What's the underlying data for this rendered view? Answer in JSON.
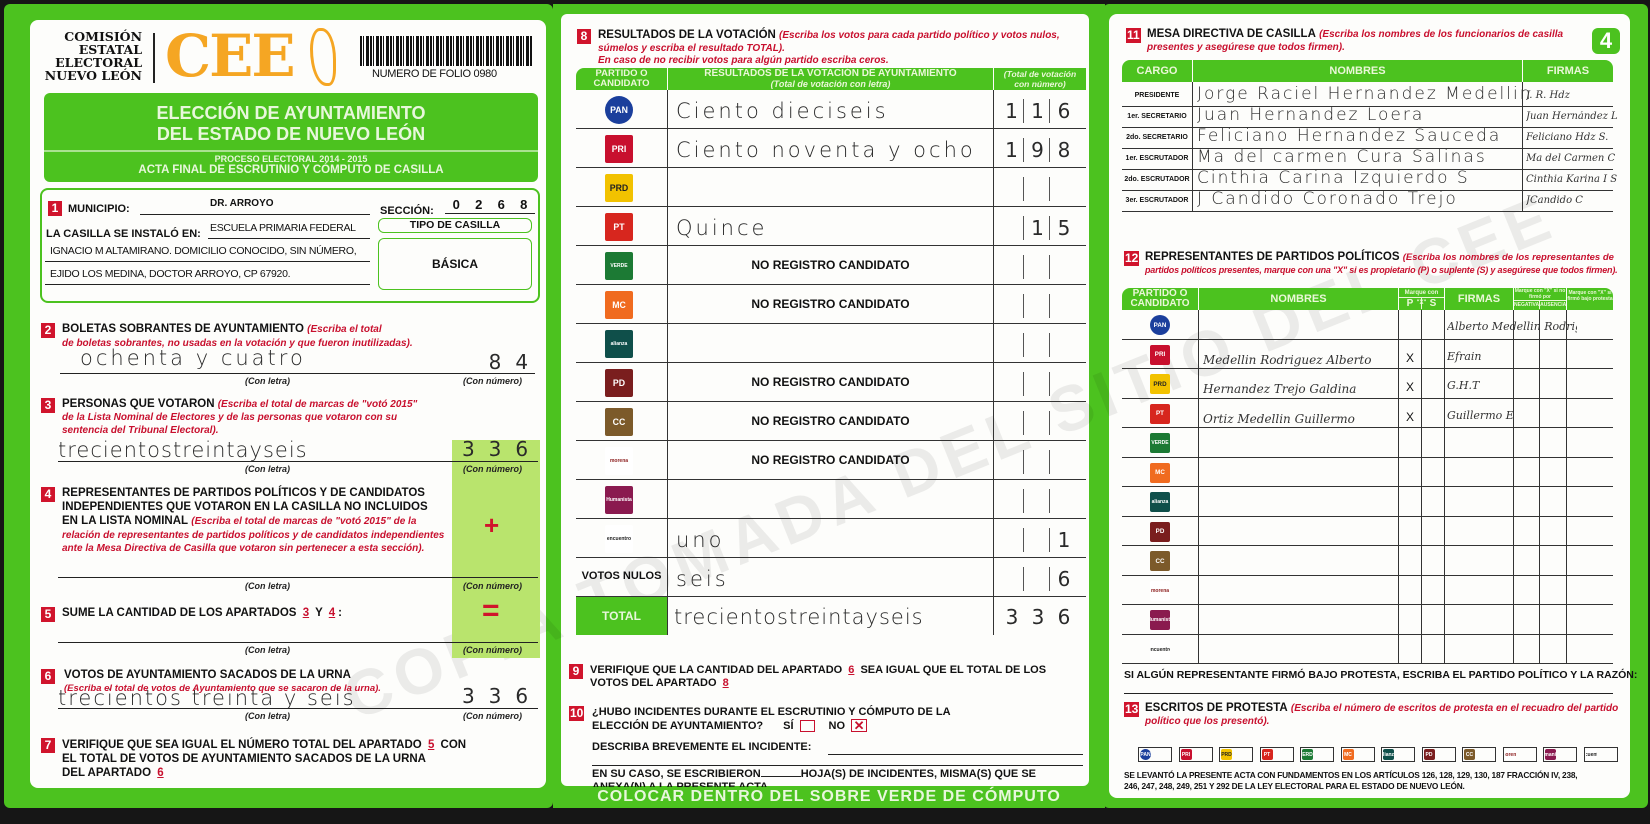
{
  "header": {
    "org_lines": [
      "COMISIÓN",
      "ESTATAL",
      "ELECTORAL",
      "NUEVO LEÓN"
    ],
    "logo_text": "CEE",
    "folio": "NUMERO DE FOLIO 0980",
    "title_line1": "ELECCIÓN DE AYUNTAMIENTO",
    "title_line2": "DEL ESTADO DE NUEVO LEÓN",
    "proceso": "PROCESO ELECTORAL 2014 - 2015",
    "acta": "ACTA FINAL DE ESCRUTINIO Y CÓMPUTO DE CASILLA",
    "page_number": "4",
    "brand_green": "#4cc21f",
    "logo_orange": "#f5a623"
  },
  "watermark": "COPIA TOMADA DEL SITIO DEL CEE",
  "s1": {
    "num": "1",
    "municipio_label": "MUNICIPIO:",
    "municipio": "DR. ARROYO",
    "seccion_label": "SECCIÓN:",
    "seccion": [
      "0",
      "2",
      "6",
      "8"
    ],
    "instalo_label": "LA CASILLA SE INSTALÓ EN:",
    "address": [
      "ESCUELA PRIMARIA FEDERAL",
      "IGNACIO M ALTAMIRANO. DOMICILIO CONOCIDO, SIN NÚMERO,",
      "EJIDO LOS MEDINA, DOCTOR ARROYO, CP 67920."
    ],
    "tipo_label": "TIPO DE CASILLA",
    "tipo": "BÁSICA"
  },
  "labels": {
    "con_letra": "(Con letra)",
    "con_numero": "(Con número)",
    "plus": "+",
    "equals": "="
  },
  "s2": {
    "num": "2",
    "title": "BOLETAS SOBRANTES DE AYUNTAMIENTO",
    "note1": "(Escriba el total",
    "note2": "de boletas sobrantes, no usadas en la votación y que fueron inutilizadas).",
    "letra": "ochenta y cuatro",
    "numero": [
      "",
      "8",
      "4"
    ]
  },
  "s3": {
    "num": "3",
    "title": "PERSONAS QUE VOTARON",
    "note1": "(Escriba el total de marcas de \"votó 2015\"",
    "note2": "de la Lista Nominal de Electores y de las personas que votaron con su",
    "note3": "sentencia del Tribunal Electoral).",
    "letra": "trecientostreintayseis",
    "numero": [
      "3",
      "3",
      "6"
    ]
  },
  "s4": {
    "num": "4",
    "line1": "REPRESENTANTES DE PARTIDOS POLÍTICOS Y DE CANDIDATOS",
    "line2": "INDEPENDIENTES QUE VOTARON EN LA CASILLA NO INCLUIDOS",
    "line3": "EN LA LISTA NOMINAL",
    "note1": "(Escriba el total de marcas de \"votó 2015\" de la",
    "note2": "relación de representantes de partidos políticos y de candidatos independientes",
    "note3": "ante la Mesa Directiva de Casilla que votaron sin pertenecer a esta sección)."
  },
  "s5": {
    "num": "5",
    "text": "SUME LA CANTIDAD DE LOS APARTADOS",
    "ref_a": "3",
    "conj": "Y",
    "ref_b": "4",
    "colon": ":"
  },
  "s6": {
    "num": "6",
    "title": "VOTOS DE AYUNTAMIENTO SACADOS DE LA URNA",
    "note": "(Escriba el total de votos de Ayuntamiento que se sacaron de la urna).",
    "letra": "trecientos treinta y seis",
    "numero": [
      "3",
      "3",
      "6"
    ]
  },
  "s7": {
    "num": "7",
    "line1": "VERIFIQUE QUE SEA IGUAL EL NÚMERO TOTAL DEL APARTADO",
    "ref_a": "5",
    "con": "CON",
    "line2": "EL TOTAL DE VOTOS DE AYUNTAMIENTO SACADOS DE LA URNA",
    "line3": "DEL APARTADO",
    "ref_b": "6"
  },
  "s8": {
    "num": "8",
    "title": "RESULTADOS DE LA VOTACIÓN",
    "note1": "(Escriba los votos para cada partido político y votos nulos,",
    "note2": "súmelos y escriba el resultado TOTAL).",
    "note3": "En caso de no recibir votos para algún partido escriba ceros.",
    "col_party": "PARTIDO O CANDIDATO",
    "col_letra": "RESULTADOS DE LA VOTACIÓN DE AYUNTAMIENTO",
    "col_letra_sub": "(Total de votación con letra)",
    "col_num": "(Total de votación con número)",
    "rows": [
      {
        "party": "PAN",
        "letra": "Ciento dieciseis",
        "numero": [
          "1",
          "1",
          "6"
        ]
      },
      {
        "party": "PRI",
        "letra": "Ciento noventa y ocho",
        "numero": [
          "1",
          "9",
          "8"
        ]
      },
      {
        "party": "PRD",
        "letra": "",
        "numero": [
          "",
          "",
          ""
        ]
      },
      {
        "party": "PT",
        "letra": "Quince",
        "numero": [
          "",
          "1",
          "5"
        ]
      },
      {
        "party": "VERDE",
        "no_registro": "NO REGISTRO CANDIDATO",
        "numero": [
          "",
          "",
          ""
        ]
      },
      {
        "party": "MOVIMIENTO CIUDADANO",
        "no_registro": "NO REGISTRO CANDIDATO",
        "numero": [
          "",
          "",
          ""
        ]
      },
      {
        "party": "alianza",
        "letra": "",
        "numero": [
          "",
          "",
          ""
        ]
      },
      {
        "party": "DEMOCRATA",
        "no_registro": "NO REGISTRO CANDIDATO",
        "numero": [
          "",
          "",
          ""
        ]
      },
      {
        "party": "CRUZADA CIUDADANA",
        "no_registro": "NO REGISTRO CANDIDATO",
        "numero": [
          "",
          "",
          ""
        ]
      },
      {
        "party": "morena",
        "no_registro": "NO REGISTRO CANDIDATO",
        "numero": [
          "",
          "",
          ""
        ]
      },
      {
        "party": "Humanista",
        "letra": "",
        "numero": [
          "",
          "",
          ""
        ]
      },
      {
        "party": "encuentro",
        "letra": "uno",
        "numero": [
          "",
          "",
          "1"
        ]
      },
      {
        "party": "VOTOS NULOS",
        "letra": "seis",
        "numero": [
          "",
          "",
          "6"
        ]
      }
    ],
    "total_label": "TOTAL",
    "total_letra": "trecientostreintayseis",
    "total_numero": [
      "3",
      "3",
      "6"
    ]
  },
  "s9": {
    "num": "9",
    "line1": "VERIFIQUE QUE LA CANTIDAD DEL APARTADO",
    "ref_a": "6",
    "line1b": "SEA IGUAL QUE EL TOTAL DE LOS",
    "line2": "VOTOS DEL APARTADO",
    "ref_b": "8"
  },
  "s10": {
    "num": "10",
    "line1": "¿HUBO INCIDENTES DURANTE EL ESCRUTINIO Y CÓMPUTO DE LA",
    "line2": "ELECCIÓN DE AYUNTAMIENTO?",
    "si": "SÍ",
    "no": "NO",
    "si_checked": false,
    "no_checked": true,
    "describa": "DESCRIBA BREVEMENTE EL INCIDENTE:",
    "en_su_caso": "EN SU CASO, SE ESCRIBIERON",
    "hojas": "HOJA(S) DE INCIDENTES, MISMA(S) QUE SE",
    "anexa": "ANEXA(N) A LA PRESENTE ACTA."
  },
  "banner": "COLOCAR DENTRO DEL SOBRE VERDE DE CÓMPUTO",
  "s11": {
    "num": "11",
    "title": "MESA DIRECTIVA DE CASILLA",
    "note1": "(Escriba los nombres de los funcionarios de casilla",
    "note2": "presentes y asegúrese que todos firmen).",
    "col_cargo": "CARGO",
    "col_nombres": "NOMBRES",
    "col_firmas": "FIRMAS",
    "rows": [
      {
        "cargo": "PRESIDENTE",
        "nombre": "Jorge Raciel Hernandez Medellin",
        "firma": "J. R. Hdz"
      },
      {
        "cargo": "1er. SECRETARIO",
        "nombre": "Juan Hernandez Loera",
        "firma": "Juan Hernández L"
      },
      {
        "cargo": "2do. SECRETARIO",
        "nombre": "Feliciano Hernandez Sauceda",
        "firma": "Feliciano Hdz S."
      },
      {
        "cargo": "1er. ESCRUTADOR",
        "nombre": "Ma del carmen Cura Salinas",
        "firma": "Ma del Carmen C"
      },
      {
        "cargo": "2do. ESCRUTADOR",
        "nombre": "Cinthia Carina Izquierdo S",
        "firma": "Cinthia Karina I S"
      },
      {
        "cargo": "3er. ESCRUTADOR",
        "nombre": "J Candido Coronado Trejo",
        "firma": "JCandido C"
      }
    ]
  },
  "s12": {
    "num": "12",
    "title": "REPRESENTANTES DE PARTIDOS POLÍTICOS",
    "note1": "(Escriba los nombres de los representantes de",
    "note2": "partidos políticos presentes, marque con una \"X\" si es propietario (P) o suplente (S) y asegúrese que todos firmen).",
    "col_party": "PARTIDO O CANDIDATO",
    "col_nombres": "NOMBRES",
    "col_marque": "Marque con \"X\"",
    "col_p": "P",
    "col_s": "S",
    "col_firmas": "FIRMAS",
    "col_nofirmo": "Marque con \"X\" si no firmó por",
    "col_negativa": "NEGATIVA",
    "col_ausencia": "AUSENCIA",
    "col_protesta": "Marque con \"X\" si firmó bajo protesta",
    "rows": [
      {
        "party": "PAN",
        "nombre": "",
        "p": "",
        "s": "",
        "firma": "Alberto Medellin Rodriguez"
      },
      {
        "party": "PRI",
        "nombre": "Medellin Rodriguez Alberto",
        "p": "X",
        "s": "",
        "firma": "Efrain"
      },
      {
        "party": "PRD",
        "nombre": "Hernandez Trejo Galdina",
        "p": "X",
        "s": "",
        "firma": "G.H.T"
      },
      {
        "party": "PT",
        "nombre": "Ortiz Medellin Guillermo",
        "p": "X",
        "s": "",
        "firma": "Guillermo E"
      },
      {
        "party": "VERDE",
        "nombre": "",
        "p": "",
        "s": "",
        "firma": ""
      },
      {
        "party": "MOVIMIENTO CIUDADANO",
        "nombre": "",
        "p": "",
        "s": "",
        "firma": ""
      },
      {
        "party": "alianza",
        "nombre": "",
        "p": "",
        "s": "",
        "firma": ""
      },
      {
        "party": "DEMOCRATA",
        "nombre": "",
        "p": "",
        "s": "",
        "firma": ""
      },
      {
        "party": "CRUZADA CIUDADANA",
        "nombre": "",
        "p": "",
        "s": "",
        "firma": ""
      },
      {
        "party": "morena",
        "nombre": "",
        "p": "",
        "s": "",
        "firma": ""
      },
      {
        "party": "Humanista",
        "nombre": "",
        "p": "",
        "s": "",
        "firma": ""
      },
      {
        "party": "encuentro",
        "nombre": "",
        "p": "",
        "s": "",
        "firma": ""
      }
    ],
    "protesta_text": "SI ALGÚN REPRESENTANTE FIRMÓ BAJO PROTESTA, ESCRIBA EL PARTIDO POLÍTICO Y LA RAZÓN:"
  },
  "s13": {
    "num": "13",
    "title": "ESCRITOS DE PROTESTA",
    "note1": "(Escriba el número de escritos de protesta en el recuadro del partido",
    "note2": "político que los presentó).",
    "parties": [
      "PAN",
      "PRI",
      "PRD",
      "PT",
      "VERDE",
      "MOVIMIENTO CIUDADANO",
      "alianza",
      "DEMOCRATA",
      "CRUZADA CIUDADANA",
      "morena",
      "Humanista",
      "encuentro"
    ]
  },
  "footer": {
    "line1": "SE LEVANTÓ LA PRESENTE ACTA CON FUNDAMENTOS EN LOS ARTÍCULOS 126, 128, 129, 130, 187 FRACCIÓN IV, 238,",
    "line2": "246, 247, 248, 249, 251 Y 292 DE LA LEY ELECTORAL PARA EL ESTADO DE NUEVO LEÓN."
  },
  "party_logos": {
    "PAN": {
      "icon": "pan-logo-icon",
      "text": "PAN",
      "bg": "#1b3f9c"
    },
    "PRI": {
      "icon": "pri-logo-icon",
      "text": "PRI",
      "bg": "#c8102e"
    },
    "PRD": {
      "icon": "prd-logo-icon",
      "text": "PRD",
      "bg": "#f2c200"
    },
    "PT": {
      "icon": "pt-logo-icon",
      "text": "PT",
      "bg": "#d7261e"
    },
    "VERDE": {
      "icon": "verde-logo-icon",
      "text": "VERDE",
      "bg": "#1c7a34"
    },
    "MOVIMIENTO CIUDADANO": {
      "icon": "movimiento-ciudadano-logo-icon",
      "text": "MC",
      "bg": "#f06b1f"
    },
    "alianza": {
      "icon": "alianza-logo-icon",
      "text": "alianza",
      "bg": "#0f4f4a"
    },
    "DEMOCRATA": {
      "icon": "democrata-logo-icon",
      "text": "PD",
      "bg": "#7a1e1e"
    },
    "CRUZADA CIUDADANA": {
      "icon": "cruzada-ciudadana-logo-icon",
      "text": "CC",
      "bg": "#7c5a2a"
    },
    "morena": {
      "icon": "morena-logo-icon",
      "text": "morena",
      "bg": "#ffffff"
    },
    "Humanista": {
      "icon": "humanista-logo-icon",
      "text": "Humanista",
      "bg": "#8a1a4f"
    },
    "encuentro": {
      "icon": "encuentro-logo-icon",
      "text": "encuentro",
      "bg": "#ffffff"
    }
  }
}
